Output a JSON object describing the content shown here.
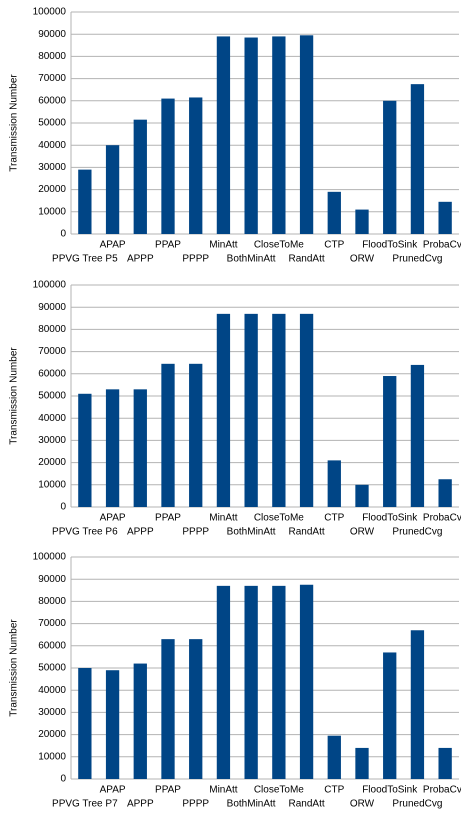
{
  "chart_data": [
    {
      "type": "bar",
      "y_label": "Transmission Number",
      "color": "#004586",
      "grid": true,
      "categories": [
        "PPVG Tree P5",
        "APAP",
        "APPP",
        "PPAP",
        "PPPP",
        "MinAtt",
        "BothMinAtt",
        "CloseToMe",
        "RandAtt",
        "CTP",
        "ORW",
        "FloodToSink",
        "PrunedCvg",
        "ProbaCvg"
      ],
      "values": [
        29000,
        40000,
        51500,
        61000,
        61500,
        89000,
        88500,
        89000,
        89500,
        19000,
        11000,
        60000,
        67500,
        14500
      ],
      "ylim": [
        0,
        100000
      ],
      "yticks": [
        0,
        10000,
        20000,
        30000,
        40000,
        50000,
        60000,
        70000,
        80000,
        90000,
        100000
      ]
    },
    {
      "type": "bar",
      "y_label": "Transmission Number",
      "color": "#004586",
      "grid": true,
      "categories": [
        "PPVG Tree P6",
        "APAP",
        "APPP",
        "PPAP",
        "PPPP",
        "MinAtt",
        "BothMinAtt",
        "CloseToMe",
        "RandAtt",
        "CTP",
        "ORW",
        "FloodToSink",
        "PrunedCvg",
        "ProbaCvg"
      ],
      "values": [
        51000,
        53000,
        53000,
        64500,
        64500,
        87000,
        87000,
        87000,
        87000,
        21000,
        10000,
        59000,
        64000,
        12500
      ],
      "ylim": [
        0,
        100000
      ],
      "yticks": [
        0,
        10000,
        20000,
        30000,
        40000,
        50000,
        60000,
        70000,
        80000,
        90000,
        100000
      ]
    },
    {
      "type": "bar",
      "y_label": "Transmission Number",
      "color": "#004586",
      "grid": true,
      "categories": [
        "PPVG Tree P7",
        "APAP",
        "APPP",
        "PPAP",
        "PPPP",
        "MinAtt",
        "BothMinAtt",
        "CloseToMe",
        "RandAtt",
        "CTP",
        "ORW",
        "FloodToSink",
        "PrunedCvg",
        "ProbaCvg"
      ],
      "values": [
        50000,
        49000,
        52000,
        63000,
        63000,
        87000,
        87000,
        87000,
        87500,
        19500,
        14000,
        57000,
        67000,
        14000
      ],
      "ylim": [
        0,
        100000
      ],
      "yticks": [
        0,
        10000,
        20000,
        30000,
        40000,
        50000,
        60000,
        70000,
        80000,
        90000,
        100000
      ]
    }
  ]
}
